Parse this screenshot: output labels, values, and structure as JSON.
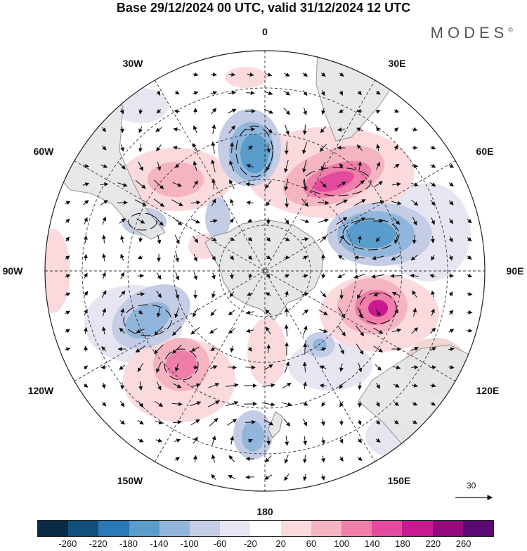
{
  "title": "Base 29/12/2024 00 UTC, valid 31/12/2024 12 UTC",
  "brand": "MODES",
  "brand_mark": "©",
  "map": {
    "projection": "south polar stereographic",
    "longitude_labels": {
      "top": "0",
      "top_right": "30E",
      "upper_right": "60E",
      "right": "90E",
      "lower_right": "120E",
      "bottom_right": "150E",
      "bottom": "180",
      "bottom_left": "150W",
      "lower_left": "120W",
      "left": "90W",
      "upper_left": "60W",
      "top_left": "30W"
    },
    "colors": {
      "land": "#e6e6e6",
      "coast": "#8a8a8a",
      "grid": "#333333"
    }
  },
  "vector_reference_label": "30",
  "colorbar": {
    "colors": [
      "#0b2a45",
      "#11507e",
      "#2a79b6",
      "#5a9ccb",
      "#92b6db",
      "#c4cce6",
      "#e6e6f3",
      "#ffffff",
      "#fadadd",
      "#f5b4c2",
      "#f07eaa",
      "#e24b9e",
      "#c81990",
      "#930b7f",
      "#5b0a75"
    ],
    "tick_labels": [
      "-260",
      "-220",
      "-180",
      "-140",
      "-100",
      "-60",
      "-20",
      "20",
      "60",
      "100",
      "140",
      "180",
      "220",
      "260"
    ]
  }
}
